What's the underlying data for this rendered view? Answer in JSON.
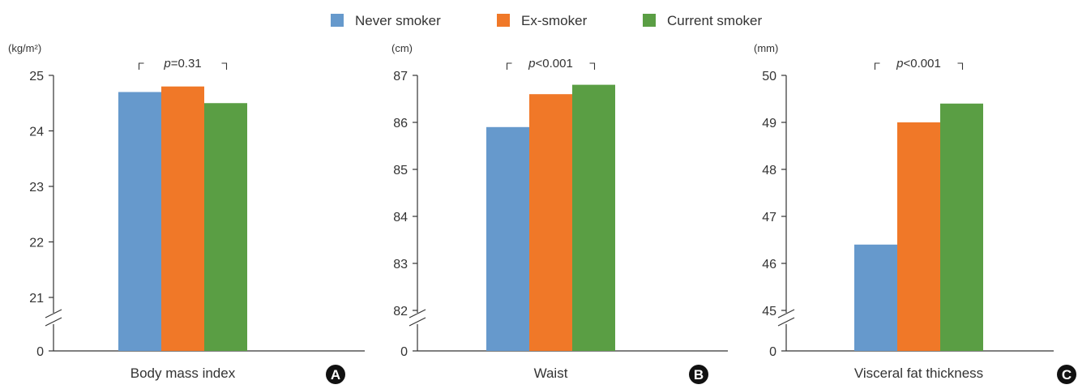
{
  "legend": {
    "series": [
      {
        "name": "Never smoker",
        "color": "#6699cc"
      },
      {
        "name": "Ex-smoker",
        "color": "#f07828"
      },
      {
        "name": "Current smoker",
        "color": "#5a9e44"
      }
    ]
  },
  "chart_data": [
    {
      "type": "bar",
      "panel": "A",
      "unit": "(kg/m²)",
      "categories": [
        "Body mass index"
      ],
      "series": [
        {
          "name": "Never smoker",
          "values": [
            24.7
          ]
        },
        {
          "name": "Ex-smoker",
          "values": [
            24.8
          ]
        },
        {
          "name": "Current smoker",
          "values": [
            24.5
          ]
        }
      ],
      "ylim": [
        21,
        25
      ],
      "y_axis_break": true,
      "yticks": [
        0,
        21,
        22,
        23,
        24,
        25
      ],
      "annotation": {
        "p_symbol": "p",
        "p_value": "=0.31"
      }
    },
    {
      "type": "bar",
      "panel": "B",
      "unit": "(cm)",
      "categories": [
        "Waist"
      ],
      "series": [
        {
          "name": "Never smoker",
          "values": [
            85.9
          ]
        },
        {
          "name": "Ex-smoker",
          "values": [
            86.6
          ]
        },
        {
          "name": "Current smoker",
          "values": [
            86.8
          ]
        }
      ],
      "ylim": [
        82,
        87
      ],
      "y_axis_break": true,
      "yticks": [
        0,
        82,
        83,
        84,
        85,
        86,
        87
      ],
      "annotation": {
        "p_symbol": "p",
        "p_value": "<0.001"
      }
    },
    {
      "type": "bar",
      "panel": "C",
      "unit": "(mm)",
      "categories": [
        "Visceral fat thickness"
      ],
      "series": [
        {
          "name": "Never smoker",
          "values": [
            46.4
          ]
        },
        {
          "name": "Ex-smoker",
          "values": [
            49.0
          ]
        },
        {
          "name": "Current smoker",
          "values": [
            49.4
          ]
        }
      ],
      "ylim": [
        45,
        50
      ],
      "y_axis_break": true,
      "yticks": [
        0,
        45,
        46,
        47,
        48,
        49,
        50
      ],
      "annotation": {
        "p_symbol": "p",
        "p_value": "<0.001"
      }
    }
  ]
}
